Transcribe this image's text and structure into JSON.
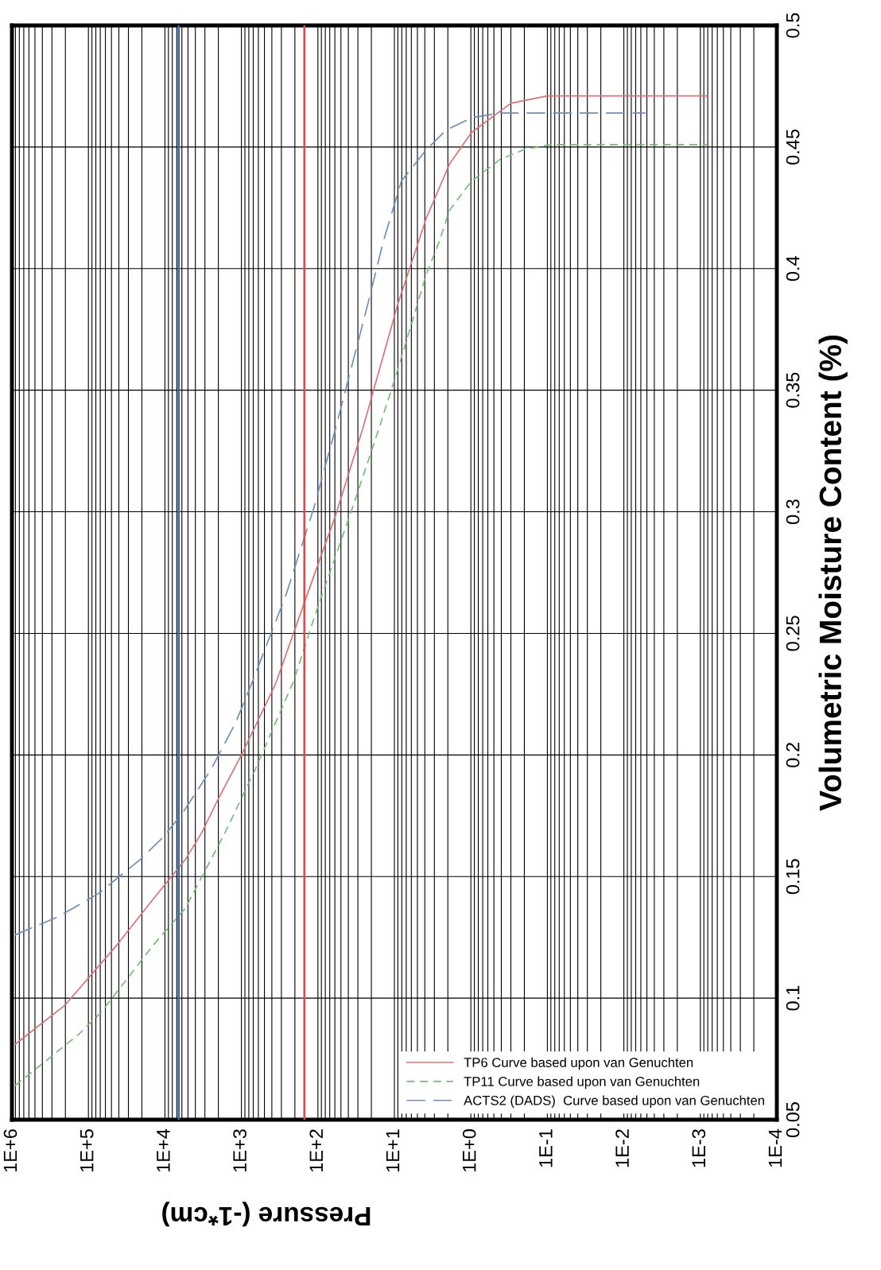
{
  "chart_data": {
    "type": "line",
    "xlabel": "Pressure (-1*cm)",
    "ylabel": "Volumetric Moisture Content (%)",
    "log": "x",
    "xlim": [
      1000000,
      0.0001
    ],
    "xticks": [
      {
        "value": 1000000,
        "label": "1E+6"
      },
      {
        "value": 100000,
        "label": "1E+5"
      },
      {
        "value": 10000,
        "label": "1E+4"
      },
      {
        "value": 1000,
        "label": "1E+3"
      },
      {
        "value": 100,
        "label": "1E+2"
      },
      {
        "value": 10,
        "label": "1E+1"
      },
      {
        "value": 1,
        "label": "1E+0"
      },
      {
        "value": 0.1,
        "label": "1E-1"
      },
      {
        "value": 0.01,
        "label": "1E-2"
      },
      {
        "value": 0.001,
        "label": "1E-3"
      },
      {
        "value": 0.0001,
        "label": "1E-4"
      }
    ],
    "ylim": [
      0.05,
      0.5
    ],
    "yticks": [
      0.05,
      0.1,
      0.15,
      0.2,
      0.25,
      0.3,
      0.35,
      0.4,
      0.45,
      0.5
    ],
    "grid": true,
    "legend": "bottom right",
    "series": [
      {
        "name": "TP6 Curve based upon van Genuchten",
        "color": "#e07070",
        "line_style": "solid",
        "x": [
          910000,
          204000,
          42000,
          14000,
          5400,
          3300,
          2000,
          1000,
          360,
          145,
          58,
          26,
          8.9,
          3.8,
          1.9,
          0.98,
          0.3,
          0.1,
          0.00081
        ],
        "values": [
          0.081,
          0.097,
          0.122,
          0.141,
          0.157,
          0.168,
          0.182,
          0.2,
          0.229,
          0.264,
          0.299,
          0.334,
          0.386,
          0.421,
          0.443,
          0.456,
          0.468,
          0.471,
          0.471
        ]
      },
      {
        "name": "TP11 Curve based upon van Genuchten",
        "color": "#70c070",
        "line_style": "dashed",
        "x": [
          910000,
          135000,
          69000,
          14000,
          5400,
          2500,
          1700,
          660,
          210,
          105,
          35,
          16,
          8.9,
          3.8,
          2.6,
          1.9,
          0.98,
          0.41,
          0.2,
          0.091,
          0.00081
        ],
        "values": [
          0.064,
          0.085,
          0.094,
          0.122,
          0.137,
          0.157,
          0.167,
          0.194,
          0.23,
          0.259,
          0.302,
          0.334,
          0.359,
          0.398,
          0.411,
          0.424,
          0.436,
          0.445,
          0.449,
          0.451,
          0.451
        ]
      },
      {
        "name": "ACTS2 (DADS)  Curve based upon van Genuchten",
        "color": "#6a90c0",
        "line_style": "longdash",
        "x": [
          910000,
          270000,
          158000,
          74000,
          21000,
          10700,
          5900,
          2500,
          1200,
          720,
          260,
          112,
          59,
          22,
          14,
          8.1,
          3.8,
          2.1,
          0.98,
          0.43,
          0.0052
        ],
        "values": [
          0.126,
          0.133,
          0.137,
          0.143,
          0.157,
          0.166,
          0.176,
          0.194,
          0.213,
          0.23,
          0.266,
          0.302,
          0.334,
          0.386,
          0.411,
          0.436,
          0.449,
          0.457,
          0.462,
          0.464,
          0.464
        ]
      }
    ],
    "ref_lines": [
      {
        "axis": "x",
        "value": 6600,
        "color": "#3a6aa8",
        "line_style": "solid"
      },
      {
        "axis": "x",
        "value": 150,
        "color": "#d05050",
        "line_style": "solid"
      }
    ]
  }
}
